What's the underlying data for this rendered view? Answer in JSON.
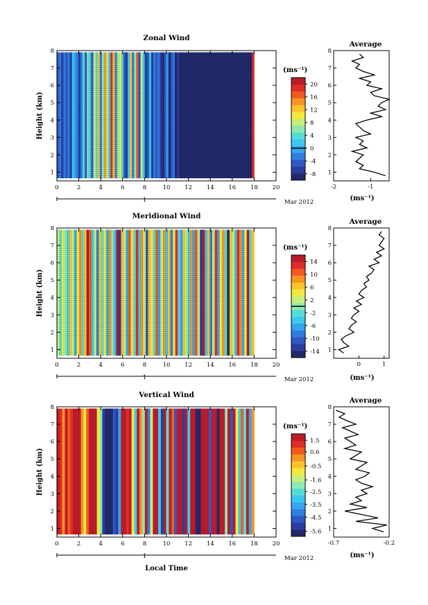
{
  "figure": {
    "date_label": "Mar 2012",
    "day_label": "1",
    "xlabel": "Local Time",
    "ylabel": "Height (km)",
    "unit_label": "(ms⁻¹)",
    "average_title": "Average",
    "average_xlabel": "(ms⁻¹)"
  },
  "chart_data": [
    {
      "type": "heatmap",
      "title": "Zonal Wind",
      "xlabel": "",
      "ylabel": "Height (km)",
      "xlim": [
        0,
        20
      ],
      "ylim": [
        0.5,
        8
      ],
      "x_ticks": [
        0,
        2,
        4,
        6,
        8,
        10,
        12,
        14,
        16,
        18,
        20
      ],
      "y_ticks": [
        1,
        2,
        3,
        4,
        5,
        6,
        7,
        8
      ],
      "data_x_end": 18,
      "colorbar": {
        "unit": "(ms⁻¹)",
        "ticks": [
          20,
          16,
          12,
          8,
          4,
          0,
          -4,
          -8
        ],
        "min": -10,
        "max": 22,
        "contour_at": 0
      },
      "column_values": [
        -4,
        -2,
        -6,
        -3,
        -5,
        -2,
        -6,
        2,
        0,
        -3,
        -6,
        -2,
        3,
        -5,
        6,
        1,
        -4,
        8,
        4,
        12,
        -2,
        6,
        14,
        9,
        2,
        18,
        13,
        -2,
        7,
        11,
        4,
        -4,
        -6,
        1,
        12,
        -3,
        6,
        16,
        -5,
        8,
        2,
        -6,
        -4,
        1,
        -7,
        -2,
        -5,
        -2,
        -6,
        -8,
        -5,
        -1,
        -8,
        -5,
        -3,
        -8,
        -7,
        -8,
        -8,
        -8,
        -8,
        -8,
        -8,
        -8,
        -8,
        -8,
        -8,
        -8,
        -8,
        -8,
        -8,
        -8,
        -8,
        -8,
        -8,
        -8,
        -8,
        -8,
        -8,
        -8,
        -8,
        -8,
        -8,
        -8,
        -8,
        -8,
        -8,
        -8,
        -8,
        -8,
        -8,
        18
      ],
      "average": {
        "xlim": [
          -2,
          -0.5
        ],
        "x_ticks": [
          -2,
          -1
        ],
        "y": [
          0.8,
          1.0,
          1.2,
          1.4,
          1.6,
          1.8,
          2.0,
          2.2,
          2.4,
          2.6,
          2.8,
          3.0,
          3.2,
          3.4,
          3.6,
          3.8,
          4.0,
          4.2,
          4.4,
          4.6,
          4.8,
          5.0,
          5.2,
          5.4,
          5.6,
          5.8,
          6.0,
          6.2,
          6.4,
          6.6,
          6.8,
          7.0,
          7.2,
          7.4,
          7.6,
          7.8
        ],
        "x": [
          -0.6,
          -0.9,
          -1.3,
          -1.2,
          -1.4,
          -1.3,
          -1.2,
          -1.5,
          -1.1,
          -1.3,
          -1.2,
          -1.4,
          -1.0,
          -1.2,
          -1.3,
          -1.4,
          -1.1,
          -0.7,
          -1.0,
          -0.6,
          -0.8,
          -0.7,
          -0.5,
          -0.9,
          -1.0,
          -0.7,
          -1.1,
          -1.0,
          -1.3,
          -0.9,
          -1.2,
          -1.4,
          -1.3,
          -1.5,
          -1.2,
          -1.3
        ]
      }
    },
    {
      "type": "heatmap",
      "title": "Meridional Wind",
      "xlabel": "",
      "ylabel": "Height (km)",
      "xlim": [
        0,
        20
      ],
      "ylim": [
        0.5,
        8
      ],
      "x_ticks": [
        0,
        2,
        4,
        6,
        8,
        10,
        12,
        14,
        16,
        18,
        20
      ],
      "y_ticks": [
        1,
        2,
        3,
        4,
        5,
        6,
        7,
        8
      ],
      "data_x_end": 18,
      "colorbar": {
        "unit": "(ms⁻¹)",
        "ticks": [
          14,
          10,
          6,
          2,
          -2,
          -6,
          -10,
          -14
        ],
        "min": -16,
        "max": 16,
        "contour_at": 0
      },
      "column_values": [
        2,
        -2,
        4,
        0,
        -4,
        6,
        2,
        -6,
        4,
        8,
        -2,
        6,
        14,
        10,
        -4,
        2,
        -8,
        6,
        -2,
        4,
        -6,
        8,
        0,
        -4,
        14,
        -12,
        6,
        2,
        -6,
        10,
        4,
        -2,
        12,
        -4,
        8,
        2,
        -10,
        6,
        4,
        -2,
        10,
        -6,
        2,
        8,
        -4,
        6,
        -8,
        4,
        12,
        -2,
        -6,
        6,
        2,
        -4,
        8,
        -6,
        10,
        2,
        -12,
        14,
        -4,
        6,
        -8,
        2,
        12,
        -6,
        4,
        8,
        -2,
        -14,
        6,
        2,
        -4,
        12,
        8,
        -6,
        4,
        14,
        -2,
        6
      ],
      "average": {
        "xlim": [
          -1,
          1.2
        ],
        "x_ticks": [
          0,
          1
        ],
        "y": [
          0.8,
          1.0,
          1.2,
          1.4,
          1.6,
          1.8,
          2.0,
          2.2,
          2.4,
          2.6,
          2.8,
          3.0,
          3.2,
          3.4,
          3.6,
          3.8,
          4.0,
          4.2,
          4.4,
          4.6,
          4.8,
          5.0,
          5.2,
          5.4,
          5.6,
          5.8,
          6.0,
          6.2,
          6.4,
          6.6,
          6.8,
          7.0,
          7.2,
          7.4,
          7.6,
          7.8
        ],
        "x": [
          -0.6,
          -0.8,
          -0.4,
          -0.6,
          -0.7,
          -0.5,
          -0.2,
          -0.4,
          -0.3,
          -0.1,
          -0.3,
          -0.2,
          0.0,
          -0.2,
          0.1,
          -0.1,
          0.2,
          0.0,
          0.1,
          0.3,
          0.2,
          0.4,
          0.3,
          0.5,
          0.6,
          0.4,
          0.8,
          0.6,
          0.9,
          0.7,
          1.0,
          0.8,
          0.9,
          1.0,
          0.8,
          0.9
        ]
      }
    },
    {
      "type": "heatmap",
      "title": "Vertical Wind",
      "xlabel": "Local Time",
      "ylabel": "Height (km)",
      "xlim": [
        0,
        20
      ],
      "ylim": [
        0.5,
        8
      ],
      "x_ticks": [
        0,
        2,
        4,
        6,
        8,
        10,
        12,
        14,
        16,
        18,
        20
      ],
      "y_ticks": [
        1,
        2,
        3,
        4,
        5,
        6,
        7,
        8
      ],
      "data_x_end": 18,
      "colorbar": {
        "unit": "(ms⁻¹)",
        "ticks": [
          1.5,
          0.6,
          -0.5,
          -1.6,
          -2.5,
          -3.5,
          -4.5,
          -5.6
        ],
        "min": -6,
        "max": 2
      },
      "column_values": [
        1.5,
        1.2,
        0.0,
        1.5,
        0.6,
        1.2,
        1.5,
        1.5,
        1.5,
        0.0,
        -0.8,
        0.6,
        1.5,
        1.5,
        1.5,
        -1.0,
        -2.0,
        -5.0,
        -5.5,
        -5.6,
        -5.6,
        -4.5,
        -5.0,
        -3.5,
        1.5,
        1.5,
        1.2,
        1.5,
        -1.0,
        -3.0,
        1.5,
        0.0,
        -2.0,
        1.5,
        -4.0,
        -1.5,
        1.5,
        1.5,
        -3.0,
        -5.0,
        1.5,
        -2.5,
        1.5,
        0.5,
        -4.5,
        1.5,
        1.5,
        -5.0,
        1.5,
        -3.0,
        1.5,
        1.5,
        -5.5,
        -5.6,
        1.5,
        1.5,
        1.5,
        -4.5,
        1.5,
        1.5,
        -5.6,
        1.5,
        1.5,
        -2.0,
        1.5,
        -4.5,
        1.5,
        -1.0,
        -3.0,
        0.5,
        -2.5,
        1.5,
        -3.5,
        0.0
      ],
      "average": {
        "xlim": [
          -0.7,
          -0.2
        ],
        "x_ticks": [
          -0.7,
          -0.2
        ],
        "y": [
          0.8,
          1.0,
          1.2,
          1.4,
          1.6,
          1.8,
          2.0,
          2.2,
          2.4,
          2.6,
          2.8,
          3.0,
          3.2,
          3.4,
          3.6,
          3.8,
          4.0,
          4.2,
          4.4,
          4.6,
          4.8,
          5.0,
          5.2,
          5.4,
          5.6,
          5.8,
          6.0,
          6.2,
          6.4,
          6.6,
          6.8,
          7.0,
          7.2,
          7.4,
          7.6,
          7.8
        ],
        "x": [
          -0.25,
          -0.35,
          -0.22,
          -0.5,
          -0.3,
          -0.45,
          -0.6,
          -0.4,
          -0.55,
          -0.45,
          -0.5,
          -0.4,
          -0.45,
          -0.35,
          -0.45,
          -0.5,
          -0.42,
          -0.38,
          -0.5,
          -0.45,
          -0.4,
          -0.55,
          -0.5,
          -0.45,
          -0.6,
          -0.5,
          -0.55,
          -0.6,
          -0.48,
          -0.55,
          -0.62,
          -0.5,
          -0.58,
          -0.65,
          -0.6,
          -0.68
        ]
      }
    }
  ]
}
